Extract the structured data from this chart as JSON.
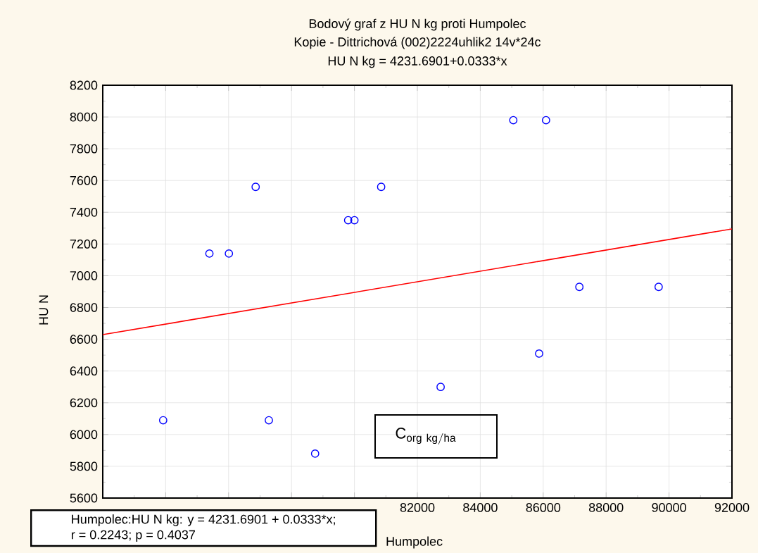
{
  "chart_data": {
    "type": "scatter",
    "title": "Bodový graf z HU N kg proti Humpolec",
    "subtitle": "Kopie - Dittrichová (002)2224uhlik2 14v*24c",
    "xlabel": "Humpolec",
    "ylabel": "HU N",
    "annotations": [
      "HU N kg = 4231.6901+0.0333*x",
      "Humpolec:HU N kg: y = 4231.6901 + 0.0333*x;",
      "r = 0.2243; p = 0.4037",
      "\\mathrm{C_{org\\ kg/ha}}"
    ],
    "x": [
      75390,
      76010,
      76860,
      79800,
      80000,
      80850,
      85050,
      86090,
      87150,
      89670,
      85870,
      73920,
      77280,
      78750,
      82740
    ],
    "series": [
      {
        "color": "#0000ff",
        "values": [
          7140,
          7140,
          7560,
          7350,
          7350,
          7560,
          7980,
          7980,
          6930,
          6930,
          6510,
          6090,
          6090,
          5880,
          6300
        ]
      },
      {
        "type": "line",
        "color": "#ff0000",
        "marker": "none",
        "x": [
          72000,
          92000
        ],
        "values": [
          6629,
          7295
        ]
      }
    ],
    "marker": "circle",
    "grid": true,
    "xlim": [
      72000,
      92000
    ],
    "ylim": [
      5600,
      8200
    ],
    "xticks": [
      {
        "value": 72000,
        "label": null
      },
      {
        "value": 74000,
        "label": null
      },
      {
        "value": 76000,
        "label": null
      },
      {
        "value": 78000,
        "label": null
      },
      {
        "value": 80000,
        "label": null
      },
      82000,
      84000,
      86000,
      88000,
      90000,
      92000
    ],
    "yticks": [
      5600,
      5800,
      6000,
      6200,
      6400,
      6600,
      6800,
      7000,
      7200,
      7400,
      7600,
      7800,
      8000,
      8200
    ]
  }
}
